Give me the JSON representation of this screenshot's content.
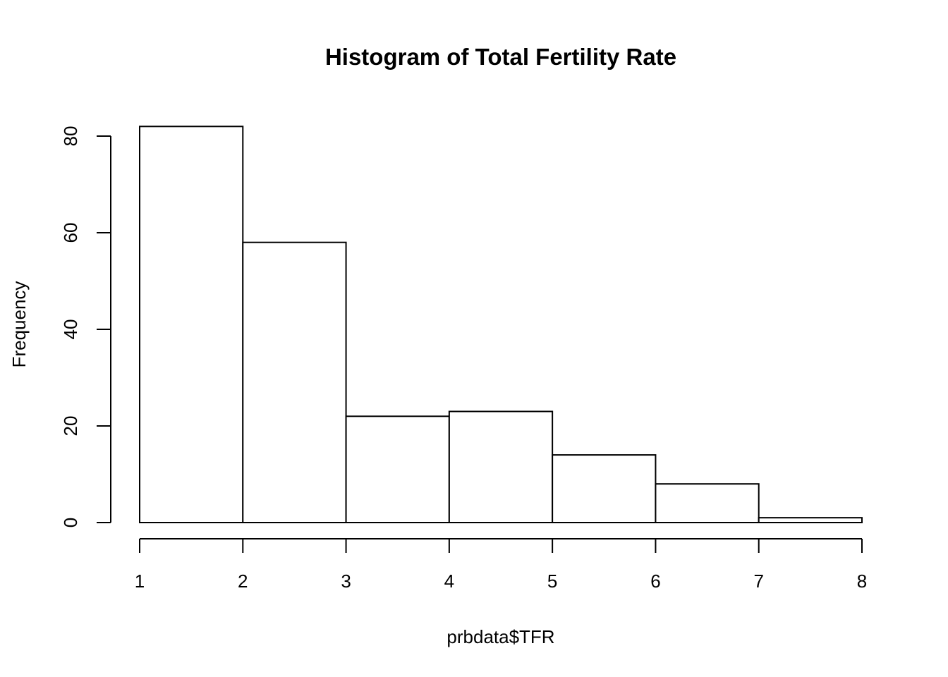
{
  "chart_data": {
    "type": "bar",
    "title": "Histogram of Total Fertility Rate",
    "xlabel": "prbdata$TFR",
    "ylabel": "Frequency",
    "bins": [
      {
        "start": 1,
        "end": 2,
        "count": 82
      },
      {
        "start": 2,
        "end": 3,
        "count": 58
      },
      {
        "start": 3,
        "end": 4,
        "count": 22
      },
      {
        "start": 4,
        "end": 5,
        "count": 23
      },
      {
        "start": 5,
        "end": 6,
        "count": 14
      },
      {
        "start": 6,
        "end": 7,
        "count": 8
      },
      {
        "start": 7,
        "end": 8,
        "count": 1
      }
    ],
    "xlim": [
      1,
      8
    ],
    "ylim": [
      0,
      82
    ],
    "x_ticks": [
      "1",
      "2",
      "3",
      "4",
      "5",
      "6",
      "7",
      "8"
    ],
    "y_ticks": [
      "0",
      "20",
      "40",
      "60",
      "80"
    ],
    "grid": false,
    "legend": "none",
    "bar_fill": "#ffffff",
    "bar_stroke": "#000000"
  }
}
